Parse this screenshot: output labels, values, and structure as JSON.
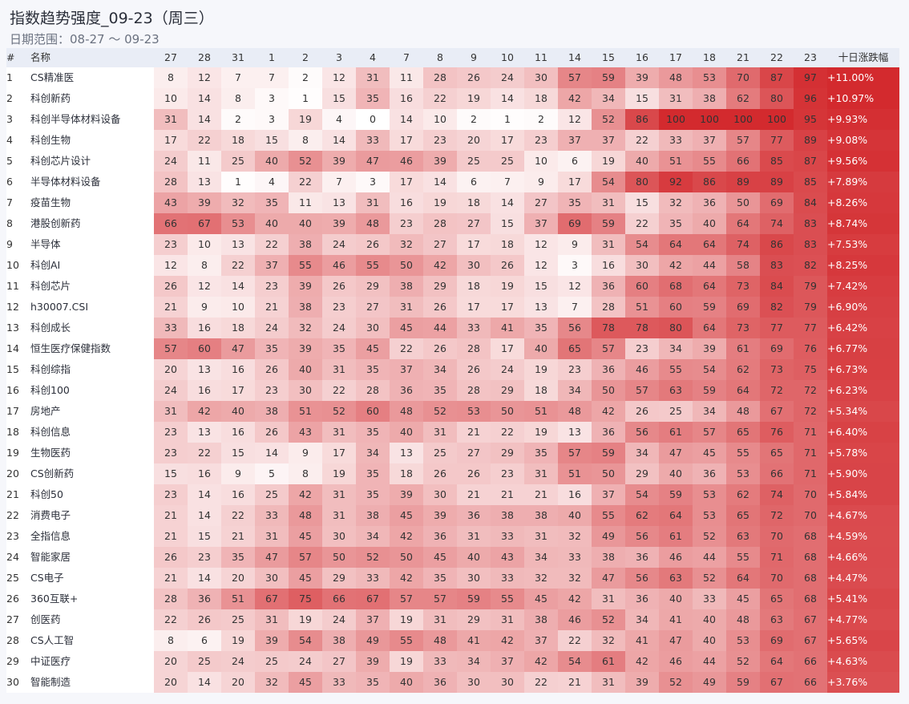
{
  "title": "指数趋势强度_09-23（周三）",
  "subtitle": "日期范围：08-27 ～ 09-23",
  "colors": {
    "low": "#ffffff",
    "high": "#d32a2e",
    "header_bg": "#e9edf6"
  },
  "chart_data": {
    "type": "heatmap",
    "title": "指数趋势强度_09-23（周三）",
    "date_range": "日期范围：08-27 ～ 09-23",
    "columns": {
      "index": "#",
      "name": "名称",
      "change": "十日涨跌幅"
    },
    "dates": [
      "27",
      "28",
      "31",
      "1",
      "2",
      "3",
      "4",
      "7",
      "8",
      "9",
      "10",
      "11",
      "14",
      "15",
      "16",
      "17",
      "18",
      "21",
      "22",
      "23"
    ],
    "value_range": [
      0,
      100
    ],
    "rows": [
      {
        "n": "1",
        "name": "CS精准医",
        "values": [
          8,
          12,
          7,
          7,
          2,
          12,
          31,
          11,
          28,
          26,
          24,
          30,
          57,
          59,
          39,
          48,
          53,
          70,
          87,
          97
        ],
        "change": "+11.00%"
      },
      {
        "n": "2",
        "name": "科创新药",
        "values": [
          10,
          14,
          8,
          3,
          1,
          15,
          35,
          16,
          22,
          19,
          14,
          18,
          42,
          34,
          15,
          31,
          38,
          62,
          80,
          96
        ],
        "change": "+10.97%"
      },
      {
        "n": "3",
        "name": "科创半导体材料设备",
        "values": [
          31,
          14,
          2,
          3,
          19,
          4,
          0,
          14,
          10,
          2,
          1,
          2,
          12,
          52,
          86,
          100,
          100,
          100,
          100,
          95
        ],
        "change": "+9.93%"
      },
      {
        "n": "4",
        "name": "科创生物",
        "values": [
          17,
          22,
          18,
          15,
          8,
          14,
          33,
          17,
          23,
          20,
          17,
          23,
          37,
          37,
          22,
          33,
          37,
          57,
          77,
          89
        ],
        "change": "+9.08%"
      },
      {
        "n": "5",
        "name": "科创芯片设计",
        "values": [
          24,
          11,
          25,
          40,
          52,
          39,
          47,
          46,
          39,
          25,
          25,
          10,
          6,
          19,
          40,
          51,
          55,
          66,
          85,
          87
        ],
        "change": "+9.56%"
      },
      {
        "n": "6",
        "name": "半导体材料设备",
        "values": [
          28,
          13,
          1,
          4,
          22,
          7,
          3,
          17,
          14,
          6,
          7,
          9,
          17,
          54,
          80,
          92,
          86,
          89,
          89,
          85
        ],
        "change": "+7.89%"
      },
      {
        "n": "7",
        "name": "疫苗生物",
        "values": [
          43,
          39,
          32,
          35,
          11,
          13,
          31,
          16,
          19,
          18,
          14,
          27,
          35,
          31,
          15,
          32,
          36,
          50,
          69,
          84
        ],
        "change": "+8.26%"
      },
      {
        "n": "8",
        "name": "港股创新药",
        "values": [
          66,
          67,
          53,
          40,
          40,
          39,
          48,
          23,
          28,
          27,
          15,
          37,
          69,
          59,
          22,
          35,
          40,
          64,
          74,
          83
        ],
        "change": "+8.74%"
      },
      {
        "n": "9",
        "name": "半导体",
        "values": [
          23,
          10,
          13,
          22,
          38,
          24,
          26,
          32,
          27,
          17,
          18,
          12,
          9,
          31,
          54,
          64,
          64,
          74,
          86,
          83
        ],
        "change": "+7.53%"
      },
      {
        "n": "10",
        "name": "科创AI",
        "values": [
          12,
          8,
          22,
          37,
          55,
          46,
          55,
          50,
          42,
          30,
          26,
          12,
          3,
          16,
          30,
          42,
          44,
          58,
          83,
          82
        ],
        "change": "+8.25%"
      },
      {
        "n": "11",
        "name": "科创芯片",
        "values": [
          26,
          12,
          14,
          23,
          39,
          26,
          29,
          38,
          29,
          18,
          19,
          15,
          12,
          36,
          60,
          68,
          64,
          73,
          84,
          79
        ],
        "change": "+7.42%"
      },
      {
        "n": "12",
        "name": "h30007.CSI",
        "values": [
          21,
          9,
          10,
          21,
          38,
          23,
          27,
          31,
          26,
          17,
          17,
          13,
          7,
          28,
          51,
          60,
          59,
          69,
          82,
          79
        ],
        "change": "+6.90%"
      },
      {
        "n": "13",
        "name": "科创成长",
        "values": [
          33,
          16,
          18,
          24,
          32,
          24,
          30,
          45,
          44,
          33,
          41,
          35,
          56,
          78,
          78,
          80,
          64,
          73,
          77,
          77
        ],
        "change": "+6.42%"
      },
      {
        "n": "14",
        "name": "恒生医疗保健指数",
        "values": [
          57,
          60,
          47,
          35,
          39,
          35,
          45,
          22,
          26,
          28,
          17,
          40,
          65,
          57,
          23,
          34,
          39,
          61,
          69,
          76
        ],
        "change": "+6.77%"
      },
      {
        "n": "15",
        "name": "科创综指",
        "values": [
          20,
          13,
          16,
          26,
          40,
          31,
          35,
          37,
          34,
          26,
          24,
          19,
          23,
          36,
          46,
          55,
          54,
          62,
          73,
          75
        ],
        "change": "+6.73%"
      },
      {
        "n": "16",
        "name": "科创100",
        "values": [
          24,
          16,
          17,
          23,
          30,
          22,
          28,
          36,
          35,
          28,
          29,
          18,
          34,
          50,
          57,
          63,
          59,
          64,
          72,
          72
        ],
        "change": "+6.23%"
      },
      {
        "n": "17",
        "name": "房地产",
        "values": [
          31,
          42,
          40,
          38,
          51,
          52,
          60,
          48,
          52,
          53,
          50,
          51,
          48,
          42,
          26,
          25,
          34,
          48,
          67,
          72
        ],
        "change": "+5.34%"
      },
      {
        "n": "18",
        "name": "科创信息",
        "values": [
          23,
          13,
          16,
          26,
          43,
          31,
          35,
          40,
          31,
          21,
          22,
          19,
          13,
          36,
          56,
          61,
          57,
          65,
          76,
          71
        ],
        "change": "+6.40%"
      },
      {
        "n": "19",
        "name": "生物医药",
        "values": [
          23,
          22,
          15,
          14,
          9,
          17,
          34,
          13,
          25,
          27,
          29,
          35,
          57,
          59,
          34,
          47,
          45,
          55,
          65,
          71
        ],
        "change": "+5.78%"
      },
      {
        "n": "20",
        "name": "CS创新药",
        "values": [
          15,
          16,
          9,
          5,
          8,
          19,
          35,
          18,
          26,
          26,
          23,
          31,
          51,
          50,
          29,
          40,
          36,
          53,
          66,
          71
        ],
        "change": "+5.90%"
      },
      {
        "n": "21",
        "name": "科创50",
        "values": [
          23,
          14,
          16,
          25,
          42,
          31,
          35,
          39,
          30,
          21,
          21,
          21,
          16,
          37,
          54,
          59,
          53,
          62,
          74,
          70
        ],
        "change": "+5.84%"
      },
      {
        "n": "22",
        "name": "消费电子",
        "values": [
          21,
          14,
          22,
          33,
          48,
          31,
          38,
          45,
          39,
          36,
          38,
          38,
          40,
          55,
          62,
          64,
          53,
          65,
          72,
          70
        ],
        "change": "+4.67%"
      },
      {
        "n": "23",
        "name": "全指信息",
        "values": [
          21,
          15,
          21,
          31,
          45,
          30,
          34,
          42,
          36,
          31,
          33,
          31,
          32,
          49,
          56,
          61,
          52,
          63,
          70,
          68
        ],
        "change": "+4.59%"
      },
      {
        "n": "24",
        "name": "智能家居",
        "values": [
          26,
          23,
          35,
          47,
          57,
          50,
          52,
          50,
          45,
          40,
          43,
          34,
          33,
          38,
          36,
          46,
          44,
          55,
          71,
          68
        ],
        "change": "+4.66%"
      },
      {
        "n": "25",
        "name": "CS电子",
        "values": [
          21,
          14,
          20,
          30,
          45,
          29,
          33,
          42,
          35,
          30,
          33,
          32,
          32,
          47,
          56,
          63,
          52,
          64,
          70,
          68
        ],
        "change": "+4.47%"
      },
      {
        "n": "26",
        "name": "360互联+",
        "values": [
          28,
          36,
          51,
          67,
          75,
          66,
          67,
          57,
          57,
          59,
          55,
          45,
          42,
          31,
          36,
          40,
          33,
          45,
          65,
          68
        ],
        "change": "+5.41%"
      },
      {
        "n": "27",
        "name": "创医药",
        "values": [
          22,
          26,
          25,
          31,
          19,
          24,
          37,
          19,
          31,
          29,
          31,
          38,
          46,
          52,
          34,
          41,
          40,
          48,
          63,
          67
        ],
        "change": "+4.77%"
      },
      {
        "n": "28",
        "name": "CS人工智",
        "values": [
          8,
          6,
          19,
          39,
          54,
          38,
          49,
          55,
          48,
          41,
          42,
          37,
          22,
          32,
          41,
          47,
          40,
          53,
          69,
          67
        ],
        "change": "+5.65%"
      },
      {
        "n": "29",
        "name": "中证医疗",
        "values": [
          20,
          25,
          24,
          25,
          24,
          27,
          39,
          19,
          33,
          34,
          37,
          42,
          54,
          61,
          42,
          46,
          44,
          52,
          64,
          66
        ],
        "change": "+4.63%"
      },
      {
        "n": "30",
        "name": "智能制造",
        "values": [
          20,
          14,
          20,
          32,
          45,
          33,
          35,
          40,
          36,
          30,
          30,
          22,
          21,
          31,
          39,
          52,
          49,
          59,
          67,
          66
        ],
        "change": "+3.76%"
      }
    ]
  }
}
